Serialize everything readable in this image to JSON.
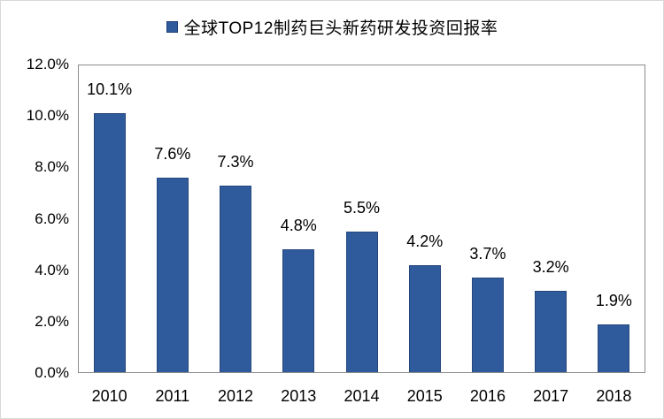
{
  "page": {
    "background": "#ffffff",
    "frame_border_color": "#d9d9d9"
  },
  "legend": {
    "label": "全球TOP12制药巨头新药研发投资回报率",
    "marker_color": "#2f5b9d",
    "marker_border_color": "#1f3f77"
  },
  "chart_data": {
    "type": "bar",
    "title": "全球TOP12制药巨头新药研发投资回报率",
    "categories": [
      "2010",
      "2011",
      "2012",
      "2013",
      "2014",
      "2015",
      "2016",
      "2017",
      "2018"
    ],
    "values": [
      10.1,
      7.6,
      7.3,
      4.8,
      5.5,
      4.2,
      3.7,
      3.2,
      1.9
    ],
    "value_labels": [
      "10.1%",
      "7.6%",
      "7.3%",
      "4.8%",
      "5.5%",
      "4.2%",
      "3.7%",
      "3.2%",
      "1.9%"
    ],
    "xlabel": "",
    "ylabel": "",
    "ylim": [
      0,
      12
    ],
    "ytick_labels": [
      "0.0%",
      "2.0%",
      "4.0%",
      "6.0%",
      "8.0%",
      "10.0%",
      "12.0%"
    ],
    "ytick_values": [
      0,
      2,
      4,
      6,
      8,
      10,
      12
    ],
    "grid": false,
    "legend_position": "top-center",
    "bar_fill_color": "#2f5b9d",
    "bar_border_color": "#24477b",
    "plot_border_color": "#8c8c8c",
    "label_color": "#000000"
  }
}
